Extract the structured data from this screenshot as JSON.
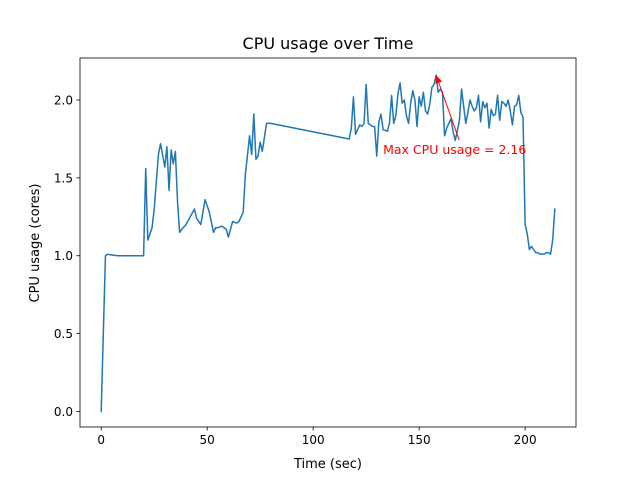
{
  "chart_data": {
    "type": "line",
    "title": "CPU usage over Time",
    "xlabel": "Time (sec)",
    "ylabel": "CPU usage (cores)",
    "xlim": [
      -10,
      224
    ],
    "ylim": [
      -0.1,
      2.27
    ],
    "xticks": [
      0,
      50,
      100,
      150,
      200
    ],
    "xtick_labels": [
      "0",
      "50",
      "100",
      "150",
      "200"
    ],
    "yticks": [
      0.0,
      0.5,
      1.0,
      1.5,
      2.0
    ],
    "ytick_labels": [
      "0.0",
      "0.5",
      "1.0",
      "1.5",
      "2.0"
    ],
    "grid": false,
    "colors": {
      "series": "#1f77b4",
      "annotation": "#ff0000"
    },
    "annotation": {
      "text": "Max CPU usage = 2.16",
      "point": [
        158,
        2.16
      ],
      "text_at": [
        133,
        1.68
      ]
    },
    "series": [
      {
        "x": [
          0,
          2,
          3,
          5,
          8,
          10,
          12,
          15,
          18,
          20,
          21,
          22,
          24,
          25,
          27,
          28,
          30,
          31,
          32,
          33,
          34,
          35,
          36,
          37,
          38,
          40,
          42,
          44,
          45,
          47,
          49,
          51,
          53,
          54,
          55,
          57,
          59,
          60,
          62,
          64,
          65,
          67,
          68,
          70,
          71,
          72,
          73,
          74,
          75,
          76,
          78,
          80,
          117,
          118,
          119,
          120,
          121,
          122,
          123,
          124,
          125,
          126,
          127,
          128,
          129,
          130,
          131,
          132,
          133,
          135,
          136,
          137,
          138,
          139,
          140,
          141,
          142,
          143,
          144,
          145,
          146,
          147,
          148,
          149,
          150,
          151,
          152,
          153,
          154,
          155,
          156,
          157,
          158,
          159,
          160,
          161,
          162,
          163,
          164,
          165,
          166,
          167,
          168,
          169,
          170,
          171,
          172,
          173,
          174,
          175,
          176,
          177,
          178,
          179,
          180,
          181,
          182,
          183,
          184,
          185,
          186,
          187,
          188,
          189,
          190,
          191,
          192,
          193,
          194,
          195,
          196,
          197,
          198,
          199,
          200,
          201,
          202,
          203,
          204,
          205,
          206,
          207,
          208,
          209,
          210,
          211,
          212,
          213,
          214
        ],
        "y": [
          0.0,
          1.0,
          1.01,
          1.005,
          1.0,
          1.0,
          1.0,
          1.0,
          1.0,
          1.0,
          1.56,
          1.1,
          1.18,
          1.3,
          1.65,
          1.72,
          1.57,
          1.7,
          1.42,
          1.68,
          1.59,
          1.67,
          1.35,
          1.15,
          1.17,
          1.2,
          1.25,
          1.3,
          1.24,
          1.2,
          1.36,
          1.28,
          1.15,
          1.18,
          1.18,
          1.19,
          1.17,
          1.12,
          1.22,
          1.21,
          1.22,
          1.28,
          1.52,
          1.77,
          1.65,
          1.91,
          1.62,
          1.64,
          1.73,
          1.67,
          1.85,
          1.85,
          1.75,
          1.82,
          2.02,
          1.78,
          1.81,
          1.84,
          1.83,
          1.85,
          2.1,
          1.85,
          1.84,
          1.83,
          1.83,
          1.64,
          1.86,
          1.91,
          1.81,
          1.8,
          1.85,
          2.03,
          1.85,
          1.9,
          2.04,
          2.11,
          1.98,
          2.0,
          1.9,
          1.85,
          1.98,
          2.06,
          2.0,
          1.83,
          2.02,
          1.96,
          2.05,
          1.93,
          1.91,
          1.97,
          2.08,
          2.1,
          2.16,
          2.05,
          2.07,
          2.05,
          1.77,
          1.82,
          1.85,
          1.88,
          1.8,
          1.74,
          1.8,
          1.87,
          2.07,
          1.96,
          1.85,
          1.92,
          2.0,
          1.96,
          1.93,
          1.95,
          2.03,
          1.86,
          1.99,
          1.95,
          1.98,
          1.82,
          1.94,
          1.9,
          1.91,
          2.03,
          1.87,
          1.99,
          1.98,
          1.96,
          2.0,
          1.93,
          1.84,
          1.96,
          1.97,
          2.03,
          1.92,
          1.89,
          1.2,
          1.14,
          1.04,
          1.06,
          1.04,
          1.02,
          1.02,
          1.01,
          1.01,
          1.01,
          1.02,
          1.02,
          1.01,
          1.1,
          1.3
        ]
      }
    ]
  }
}
